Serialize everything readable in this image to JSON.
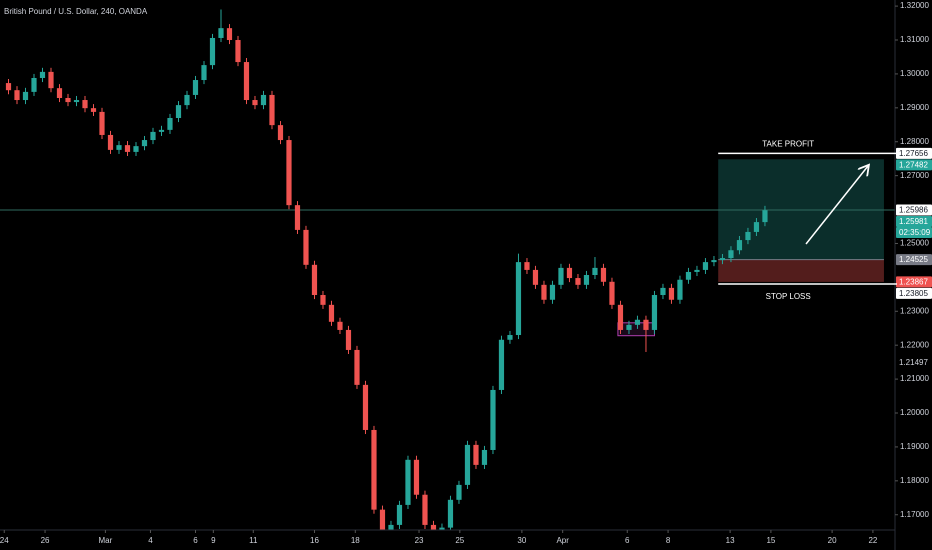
{
  "chart_data": {
    "type": "candlestick",
    "title": "British Pound / U.S. Dollar, 240, OANDA",
    "up_color": "#26a69a",
    "down_color": "#ef5350",
    "x": [
      1,
      2,
      3,
      4,
      5,
      6,
      7,
      8,
      9,
      10,
      11,
      12,
      13,
      14,
      15,
      16,
      17,
      18,
      19,
      20,
      21,
      22,
      23,
      24,
      25,
      26,
      27,
      28,
      29,
      30,
      31,
      32,
      33,
      34,
      35,
      36,
      37,
      38,
      39,
      40,
      41,
      42,
      43,
      44,
      45,
      46,
      47,
      48,
      49,
      50,
      51,
      52,
      53,
      54,
      55,
      56,
      57,
      58,
      59,
      60,
      61,
      62,
      63,
      64,
      65,
      66,
      67,
      68,
      69,
      70,
      71,
      72,
      73,
      74,
      75,
      76,
      77,
      78,
      79,
      80,
      81,
      82,
      83,
      84,
      85,
      86,
      87,
      88,
      89,
      90
    ],
    "open": [
      1.2973,
      1.2952,
      1.2923,
      1.2947,
      1.2988,
      1.3006,
      1.2958,
      1.2929,
      1.2917,
      1.2923,
      1.2899,
      1.2888,
      1.282,
      1.2776,
      1.279,
      1.277,
      1.2787,
      1.2805,
      1.2829,
      1.2835,
      1.287,
      1.2908,
      1.2938,
      1.2982,
      1.3026,
      1.3106,
      1.3135,
      1.31,
      1.3035,
      1.2923,
      1.2908,
      1.2938,
      1.2849,
      1.2805,
      1.2613,
      1.254,
      1.2437,
      1.2348,
      1.2319,
      1.2269,
      1.2245,
      1.2186,
      1.2083,
      1.195,
      1.1715,
      1.1626,
      1.167,
      1.1729,
      1.1862,
      1.1759,
      1.167,
      1.1641,
      1.1662,
      1.1744,
      1.1788,
      1.1906,
      1.1847,
      1.1891,
      1.2068,
      1.2216,
      1.223,
      1.2445,
      1.2422,
      1.2378,
      1.2334,
      1.2378,
      1.2428,
      1.2398,
      1.2378,
      1.2407,
      1.2428,
      1.2387,
      1.2319,
      1.2245,
      1.226,
      1.2275,
      1.2245,
      1.2348,
      1.2369,
      1.2334,
      1.2393,
      1.2416,
      1.2422,
      1.2445,
      1.2451,
      1.2457,
      1.248,
      1.251,
      1.2534,
      1.2563
    ],
    "high": [
      1.2985,
      1.2964,
      1.2959,
      1.3,
      1.3018,
      1.3018,
      1.297,
      1.2941,
      1.2935,
      1.2935,
      1.2911,
      1.29,
      1.2832,
      1.2802,
      1.2802,
      1.2799,
      1.2817,
      1.2841,
      1.2847,
      1.2882,
      1.292,
      1.295,
      1.2994,
      1.3038,
      1.3118,
      1.319,
      1.3147,
      1.3112,
      1.3047,
      1.2935,
      1.295,
      1.295,
      1.2861,
      1.2817,
      1.2625,
      1.2552,
      1.2449,
      1.236,
      1.2331,
      1.2281,
      1.2257,
      1.2198,
      1.2095,
      1.1962,
      1.1727,
      1.1682,
      1.1741,
      1.1874,
      1.1874,
      1.1771,
      1.1682,
      1.1674,
      1.1756,
      1.18,
      1.1918,
      1.1918,
      1.1903,
      1.208,
      1.2228,
      1.2242,
      1.247,
      1.2457,
      1.2434,
      1.239,
      1.239,
      1.244,
      1.244,
      1.241,
      1.2419,
      1.246,
      1.244,
      1.2399,
      1.2331,
      1.2272,
      1.2287,
      1.2287,
      1.236,
      1.2381,
      1.2381,
      1.2405,
      1.2428,
      1.2434,
      1.2457,
      1.2463,
      1.2469,
      1.2492,
      1.2522,
      1.2546,
      1.2575,
      1.2611
    ],
    "low": [
      1.294,
      1.2911,
      1.2911,
      1.2935,
      1.2976,
      1.2946,
      1.2917,
      1.2905,
      1.2905,
      1.2887,
      1.2876,
      1.2808,
      1.2764,
      1.2764,
      1.2758,
      1.2758,
      1.2775,
      1.2793,
      1.2817,
      1.2823,
      1.2858,
      1.2896,
      1.2926,
      1.297,
      1.3014,
      1.3094,
      1.3088,
      1.3023,
      1.2911,
      1.2896,
      1.2896,
      1.2837,
      1.2793,
      1.2601,
      1.2528,
      1.2425,
      1.2336,
      1.2307,
      1.2257,
      1.2233,
      1.2174,
      1.2071,
      1.1938,
      1.1703,
      1.1614,
      1.1614,
      1.1658,
      1.1717,
      1.1747,
      1.1658,
      1.1629,
      1.1629,
      1.165,
      1.1732,
      1.1776,
      1.1835,
      1.1835,
      1.1879,
      1.2056,
      1.2204,
      1.2218,
      1.241,
      1.2366,
      1.2322,
      1.2322,
      1.2366,
      1.2386,
      1.2366,
      1.2366,
      1.2395,
      1.2375,
      1.2307,
      1.2233,
      1.2233,
      1.2248,
      1.218,
      1.2233,
      1.2336,
      1.2322,
      1.2322,
      1.2381,
      1.2404,
      1.241,
      1.2433,
      1.2439,
      1.2445,
      1.2468,
      1.2498,
      1.2522,
      1.2551
    ],
    "close": [
      1.2952,
      1.2923,
      1.2947,
      1.2988,
      1.3006,
      1.2958,
      1.2929,
      1.2917,
      1.2923,
      1.2899,
      1.2888,
      1.282,
      1.2776,
      1.279,
      1.277,
      1.2787,
      1.2805,
      1.2829,
      1.2835,
      1.287,
      1.2908,
      1.2938,
      1.2982,
      1.3026,
      1.3106,
      1.3135,
      1.31,
      1.3035,
      1.2923,
      1.2908,
      1.2938,
      1.2849,
      1.2805,
      1.2613,
      1.254,
      1.2437,
      1.2348,
      1.2319,
      1.2269,
      1.2245,
      1.2186,
      1.2083,
      1.195,
      1.1715,
      1.1626,
      1.167,
      1.1729,
      1.1862,
      1.1759,
      1.167,
      1.1641,
      1.1662,
      1.1744,
      1.1788,
      1.1906,
      1.1847,
      1.1891,
      1.2068,
      1.2216,
      1.223,
      1.2445,
      1.2422,
      1.2378,
      1.2334,
      1.2378,
      1.2428,
      1.2398,
      1.2378,
      1.2407,
      1.2428,
      1.2387,
      1.2319,
      1.2245,
      1.226,
      1.2275,
      1.2245,
      1.2348,
      1.2369,
      1.2334,
      1.2393,
      1.2416,
      1.2422,
      1.2445,
      1.2451,
      1.2457,
      1.248,
      1.251,
      1.2534,
      1.2563,
      1.2598
    ],
    "xlim": [
      0,
      105.3
    ],
    "xticks": [
      {
        "value": 0.5,
        "label": "24"
      },
      {
        "value": 5.3,
        "label": "26"
      },
      {
        "value": 12.4,
        "label": "Mar"
      },
      {
        "value": 17.7,
        "label": "4"
      },
      {
        "value": 23,
        "label": "6"
      },
      {
        "value": 25.1,
        "label": "9"
      },
      {
        "value": 29.8,
        "label": "11"
      },
      {
        "value": 37,
        "label": "16"
      },
      {
        "value": 41.8,
        "label": "18"
      },
      {
        "value": 49.3,
        "label": "23"
      },
      {
        "value": 54.1,
        "label": "25"
      },
      {
        "value": 61.4,
        "label": "30"
      },
      {
        "value": 66.2,
        "label": "Apr"
      },
      {
        "value": 73.8,
        "label": "6"
      },
      {
        "value": 78.6,
        "label": "8"
      },
      {
        "value": 85.9,
        "label": "13"
      },
      {
        "value": 90.7,
        "label": "15"
      },
      {
        "value": 97.9,
        "label": "20"
      },
      {
        "value": 102.7,
        "label": "22"
      }
    ],
    "ylim": [
      1.1655,
      1.3218
    ],
    "yticks": [
      {
        "value": 1.32,
        "label": "1.32000"
      },
      {
        "value": 1.31,
        "label": "1.31000"
      },
      {
        "value": 1.3,
        "label": "1.30000"
      },
      {
        "value": 1.29,
        "label": "1.29000"
      },
      {
        "value": 1.28,
        "label": "1.28000"
      },
      {
        "value": 1.27,
        "label": "1.27000"
      },
      {
        "value": 1.25,
        "label": "1.25000"
      },
      {
        "value": 1.23,
        "label": "1.23000"
      },
      {
        "value": 1.22,
        "label": "1.22000"
      },
      {
        "value": 1.21,
        "label": "1.21000"
      },
      {
        "value": 1.2,
        "label": "1.20000"
      },
      {
        "value": 1.19,
        "label": "1.19000"
      },
      {
        "value": 1.18,
        "label": "1.18000"
      },
      {
        "value": 1.17,
        "label": "1.17000"
      }
    ],
    "price_labels": [
      {
        "value": 1.27656,
        "label": "1.27656",
        "color": "#ffffff",
        "text_color": "#131722"
      },
      {
        "value": 1.27482,
        "label": "1.27482",
        "color": "#26a69a",
        "text_color": "#ffffff"
      },
      {
        "value": 1.25986,
        "label": "1.25986",
        "color": "#ffffff",
        "text_color": "#131722"
      },
      {
        "value": 1.25981,
        "label": "1.25981",
        "color": "#26a69a",
        "text_color": "#ffffff"
      },
      {
        "value": 1.24525,
        "label": "1.24525",
        "color": "#787b86",
        "text_color": "#ffffff"
      },
      {
        "value": 1.23867,
        "label": "1.23867",
        "color": "#ef5350",
        "text_color": "#ffffff"
      },
      {
        "value": 1.23805,
        "label": "1.23805",
        "color": "#ffffff",
        "text_color": "#131722"
      },
      {
        "value": 1.21497,
        "label": "1.21497",
        "color": "#000000",
        "text_color": "#d1d4dc"
      }
    ],
    "countdown": "02:35:09",
    "position": {
      "take_profit_label": "TAKE PROFIT",
      "stop_loss_label": "STOP LOSS",
      "x_start": 84.5,
      "x_end": 104
    },
    "highlight": {
      "x": [
        72.7,
        77
      ],
      "y": [
        1.2228,
        1.2266
      ],
      "color": "#b03fb0"
    }
  }
}
